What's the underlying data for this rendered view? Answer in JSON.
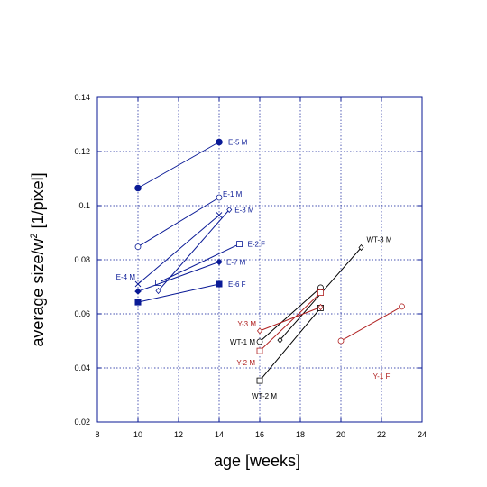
{
  "chart_data": {
    "type": "line",
    "title": "",
    "xlabel": "age [weeks]",
    "ylabel": "average size/w",
    "ylabel_sup": "2",
    "ylabel_unit": " [1/pixel]",
    "xlim": [
      8,
      24
    ],
    "ylim": [
      0.02,
      0.14
    ],
    "xticks": [
      "8",
      "10",
      "12",
      "14",
      "16",
      "18",
      "20",
      "22",
      "24"
    ],
    "yticks": [
      "0.02",
      "0.04",
      "0.06",
      "0.08",
      "0.1",
      "0.12",
      "0.14"
    ],
    "grid": true,
    "colors": {
      "blue": "#0a1a96",
      "black": "#000000",
      "red": "#b02020",
      "frame": "#0a1a96",
      "grid": "#0a1a96"
    },
    "series": [
      {
        "name": "E-5 M",
        "color": "blue",
        "marker": "filled-circle",
        "x": [
          10,
          14
        ],
        "y": [
          0.1065,
          0.1235
        ]
      },
      {
        "name": "E-1 M",
        "color": "blue",
        "marker": "open-circle",
        "x": [
          10,
          14
        ],
        "y": [
          0.0848,
          0.103
        ]
      },
      {
        "name": "E-4 M",
        "color": "blue",
        "marker": "cross",
        "x": [
          10,
          14
        ],
        "y": [
          0.071,
          0.0965
        ]
      },
      {
        "name": "E-3 M",
        "color": "blue",
        "marker": "open-diamond",
        "x": [
          11,
          14.5
        ],
        "y": [
          0.0685,
          0.0985
        ]
      },
      {
        "name": "E-2 F",
        "color": "blue",
        "marker": "open-square",
        "x": [
          11,
          15
        ],
        "y": [
          0.0715,
          0.0858
        ]
      },
      {
        "name": "E-7 M",
        "color": "blue",
        "marker": "filled-diamond",
        "x": [
          10,
          14
        ],
        "y": [
          0.0683,
          0.0792
        ]
      },
      {
        "name": "E-6 F",
        "color": "blue",
        "marker": "filled-square",
        "x": [
          10,
          14
        ],
        "y": [
          0.0643,
          0.071
        ]
      },
      {
        "name": "WT-3 M",
        "color": "black",
        "marker": "open-diamond",
        "x": [
          17,
          21
        ],
        "y": [
          0.0503,
          0.0845
        ]
      },
      {
        "name": "WT-1 M",
        "color": "black",
        "marker": "open-circle",
        "x": [
          16,
          19
        ],
        "y": [
          0.0497,
          0.0697
        ]
      },
      {
        "name": "WT-2 M",
        "color": "black",
        "marker": "open-square",
        "x": [
          16,
          19
        ],
        "y": [
          0.0353,
          0.0622
        ]
      },
      {
        "name": "Y-3 M",
        "color": "red",
        "marker": "open-diamond",
        "x": [
          16,
          19
        ],
        "y": [
          0.0537,
          0.0625
        ]
      },
      {
        "name": "Y-2 M",
        "color": "red",
        "marker": "open-square",
        "x": [
          16,
          19
        ],
        "y": [
          0.0463,
          0.0678
        ]
      },
      {
        "name": "Y-1 F",
        "color": "red",
        "marker": "open-circle",
        "x": [
          20,
          23
        ],
        "y": [
          0.05,
          0.0627
        ]
      }
    ]
  }
}
